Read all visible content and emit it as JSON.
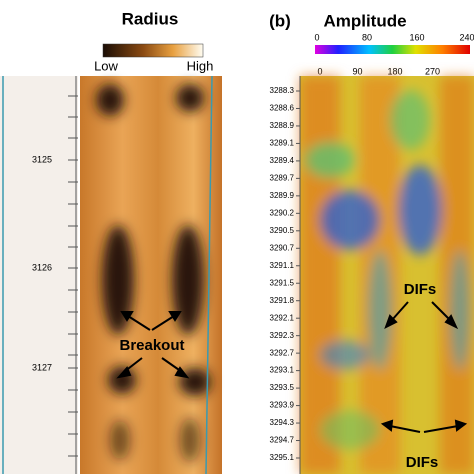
{
  "panel_a": {
    "title": "Radius",
    "scale_low": "Low",
    "scale_high": "High",
    "depths": [
      "3125",
      "3126",
      "3127"
    ],
    "annotation": "Breakout"
  },
  "panel_b": {
    "label": "(b)",
    "title": "Amplitude",
    "scale_top": [
      "0",
      "80",
      "160",
      "240"
    ],
    "scale_bottom": [
      "0",
      "90",
      "180",
      "270"
    ],
    "depths": [
      "3288.3",
      "3288.6",
      "3288.9",
      "3289.1",
      "3289.4",
      "3289.7",
      "3289.9",
      "3290.2",
      "3290.5",
      "3290.7",
      "3291.1",
      "3291.5",
      "3291.8",
      "3292.1",
      "3292.3",
      "3292.7",
      "3293.1",
      "3293.5",
      "3293.9",
      "3294.3",
      "3294.7",
      "3295.1"
    ],
    "annotations": [
      "DIFs",
      "DIFs"
    ]
  }
}
